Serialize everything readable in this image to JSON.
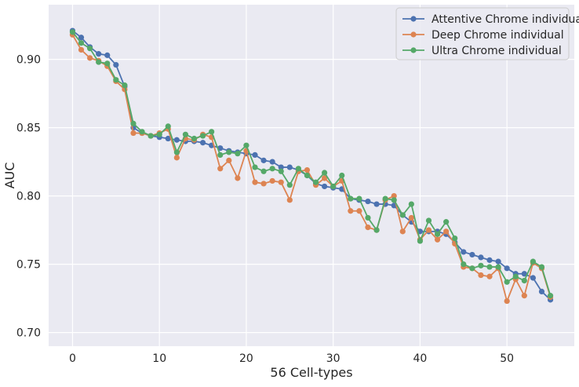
{
  "chart_data": {
    "type": "line",
    "title": "",
    "xlabel": "56 Cell-types",
    "ylabel": "AUC",
    "xlim": [
      -2.75,
      57.75
    ],
    "ylim": [
      0.69,
      0.94
    ],
    "x_ticks": [
      0,
      10,
      20,
      30,
      40,
      50
    ],
    "y_ticks": [
      0.7,
      0.75,
      0.8,
      0.85,
      0.9
    ],
    "x_tick_labels": [
      "0",
      "10",
      "20",
      "30",
      "40",
      "50"
    ],
    "y_tick_labels": [
      "0.70",
      "0.75",
      "0.80",
      "0.85",
      "0.90"
    ],
    "grid": true,
    "legend_position": "top-right",
    "background_color": "#eaeaf2",
    "grid_color": "#ffffff",
    "x": [
      0,
      1,
      2,
      3,
      4,
      5,
      6,
      7,
      8,
      9,
      10,
      11,
      12,
      13,
      14,
      15,
      16,
      17,
      18,
      19,
      20,
      21,
      22,
      23,
      24,
      25,
      26,
      27,
      28,
      29,
      30,
      31,
      32,
      33,
      34,
      35,
      36,
      37,
      38,
      39,
      40,
      41,
      42,
      43,
      44,
      45,
      46,
      47,
      48,
      49,
      50,
      51,
      52,
      53,
      54,
      55
    ],
    "series": [
      {
        "name": "Attentive Chrome individual",
        "color": "#4c72b0",
        "values": [
          0.921,
          0.916,
          0.909,
          0.904,
          0.903,
          0.896,
          0.88,
          0.85,
          0.846,
          0.844,
          0.843,
          0.842,
          0.841,
          0.84,
          0.84,
          0.839,
          0.837,
          0.835,
          0.833,
          0.832,
          0.831,
          0.83,
          0.826,
          0.825,
          0.821,
          0.821,
          0.819,
          0.815,
          0.809,
          0.807,
          0.806,
          0.805,
          0.798,
          0.797,
          0.796,
          0.794,
          0.794,
          0.793,
          0.786,
          0.781,
          0.774,
          0.774,
          0.774,
          0.772,
          0.766,
          0.759,
          0.757,
          0.755,
          0.753,
          0.752,
          0.747,
          0.743,
          0.743,
          0.74,
          0.73,
          0.724
        ]
      },
      {
        "name": "Deep Chrome individual",
        "color": "#dd8452",
        "values": [
          0.918,
          0.907,
          0.901,
          0.899,
          0.895,
          0.884,
          0.878,
          0.846,
          0.846,
          0.844,
          0.846,
          0.849,
          0.828,
          0.842,
          0.841,
          0.845,
          0.843,
          0.82,
          0.826,
          0.813,
          0.833,
          0.81,
          0.809,
          0.811,
          0.81,
          0.797,
          0.818,
          0.819,
          0.808,
          0.813,
          0.807,
          0.811,
          0.789,
          0.789,
          0.777,
          0.775,
          0.797,
          0.8,
          0.774,
          0.784,
          0.768,
          0.775,
          0.768,
          0.774,
          0.765,
          0.748,
          0.747,
          0.742,
          0.741,
          0.747,
          0.723,
          0.739,
          0.727,
          0.751,
          0.747,
          0.726
        ]
      },
      {
        "name": "Ultra Chrome individual",
        "color": "#55a868",
        "values": [
          0.92,
          0.912,
          0.908,
          0.898,
          0.897,
          0.885,
          0.881,
          0.853,
          0.847,
          0.844,
          0.845,
          0.851,
          0.832,
          0.845,
          0.842,
          0.844,
          0.847,
          0.83,
          0.832,
          0.831,
          0.837,
          0.821,
          0.818,
          0.82,
          0.818,
          0.808,
          0.82,
          0.815,
          0.81,
          0.817,
          0.807,
          0.815,
          0.798,
          0.798,
          0.784,
          0.775,
          0.798,
          0.797,
          0.786,
          0.794,
          0.767,
          0.782,
          0.772,
          0.781,
          0.769,
          0.75,
          0.747,
          0.749,
          0.748,
          0.748,
          0.737,
          0.741,
          0.738,
          0.752,
          0.748,
          0.727
        ]
      }
    ]
  }
}
